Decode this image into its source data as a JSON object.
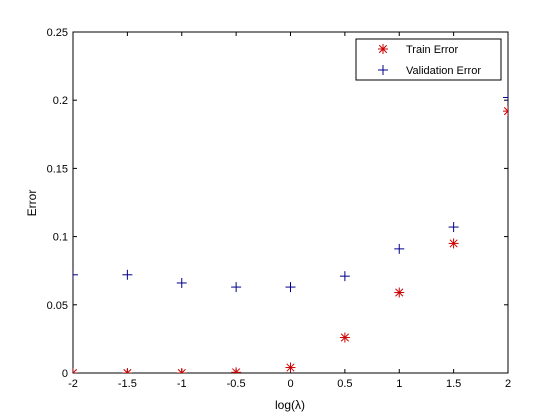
{
  "chart_data": {
    "type": "scatter",
    "xlabel": "log(λ)",
    "ylabel": "Error",
    "xlim": [
      -2,
      2
    ],
    "ylim": [
      0,
      0.25
    ],
    "x_ticks": [
      "-2",
      "-1.5",
      "-1",
      "-0.5",
      "0",
      "0.5",
      "1",
      "1.5",
      "2"
    ],
    "y_ticks": [
      "0",
      "0.05",
      "0.1",
      "0.15",
      "0.2",
      "0.25"
    ],
    "grid": false,
    "legend_position": "top-right",
    "series": [
      {
        "name": "Train Error",
        "marker": "asterisk",
        "color": "#cc0000",
        "x": [
          -2,
          -1.5,
          -1,
          -0.5,
          0,
          0.5,
          1,
          1.5,
          2
        ],
        "y": [
          0.0,
          0.0,
          0.0,
          0.0005,
          0.004,
          0.026,
          0.059,
          0.095,
          0.192
        ]
      },
      {
        "name": "Validation Error",
        "marker": "plus",
        "color": "#00008b",
        "x": [
          -2,
          -1.5,
          -1,
          -0.5,
          0,
          0.5,
          1,
          1.5,
          2
        ],
        "y": [
          0.072,
          0.072,
          0.066,
          0.063,
          0.063,
          0.071,
          0.091,
          0.107,
          0.202
        ]
      }
    ]
  }
}
